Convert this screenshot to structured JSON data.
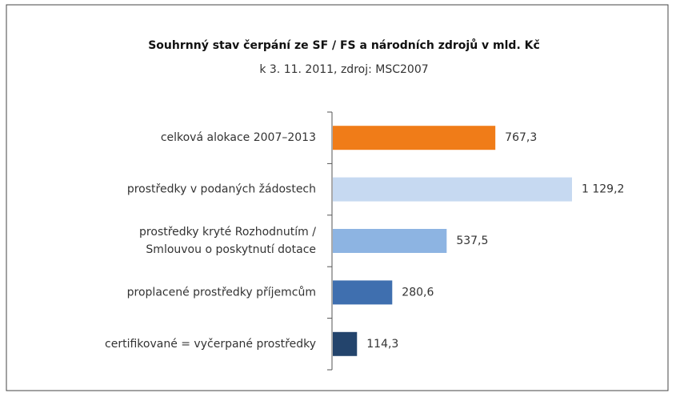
{
  "chart_data": {
    "type": "bar",
    "orientation": "horizontal",
    "title": "Souhrnný stav čerpání ze SF / FS a národních zdrojů v mld. Kč",
    "subtitle": "k 3. 11. 2011, zdroj: MSC2007",
    "categories": [
      "celková alokace 2007–2013",
      "prostředky v podaných žádostech",
      "prostředky kryté Rozhodnutím /\nSmlouvou o poskytnutí  dotace",
      "proplacené prostředky příjemcům",
      "certifikované = vyčerpané prostředky"
    ],
    "values": [
      767.3,
      1129.2,
      537.5,
      280.6,
      114.3
    ],
    "value_labels": [
      "767,3",
      "1 129,2",
      "537,5",
      "280,6",
      "114,3"
    ],
    "colors": [
      "#f07c18",
      "#c6d9f1",
      "#8db4e2",
      "#3f6faf",
      "#23446c"
    ]
  }
}
